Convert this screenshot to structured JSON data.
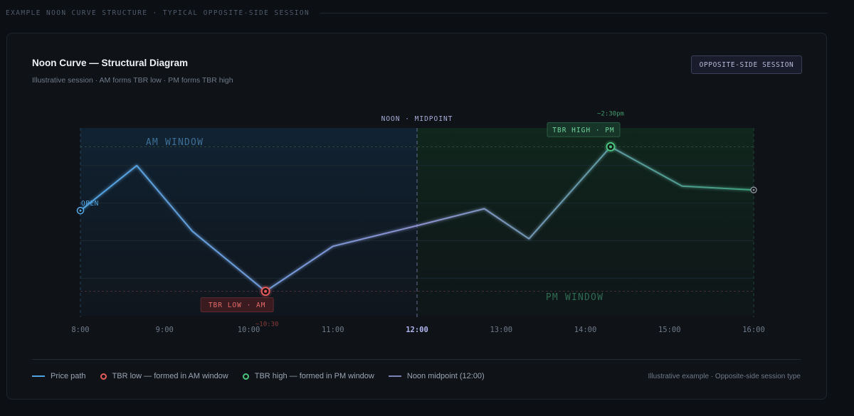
{
  "section_label": "EXAMPLE NOON CURVE STRUCTURE · TYPICAL OPPOSITE-SIDE SESSION",
  "card": {
    "title": "Noon Curve — Structural Diagram",
    "subtitle": "Illustrative session · AM forms TBR low · PM forms TBR high",
    "tag": "OPPOSITE-SIDE SESSION"
  },
  "colors": {
    "am_line": "#4fa3e0",
    "pm_line": "#3fa07e",
    "mid_line": "#8e93d1",
    "low": "#e65b5b",
    "high": "#4cc27f",
    "midpoint": "#7c83b8"
  },
  "chart_data": {
    "type": "line",
    "title": "Noon Curve — Structural Diagram",
    "x_ticks": [
      "8:00",
      "9:00",
      "10:00",
      "11:00",
      "12:00",
      "13:00",
      "14:00",
      "15:00",
      "16:00"
    ],
    "highlight_tick": "12:00",
    "x_range_hours": [
      8,
      16
    ],
    "y_range": [
      0,
      100
    ],
    "series": [
      {
        "name": "Price path",
        "x": [
          8.0,
          8.67,
          9.33,
          10.2,
          11.0,
          12.0,
          12.8,
          13.33,
          14.3,
          15.15,
          16.0
        ],
        "y": [
          56,
          80,
          45,
          13,
          37,
          48,
          57,
          41,
          90,
          69,
          67
        ]
      }
    ],
    "windows": [
      {
        "name": "AM WINDOW",
        "from": 8,
        "to": 12
      },
      {
        "name": "PM WINDOW",
        "from": 12,
        "to": 16
      }
    ],
    "midpoint": {
      "x": 12,
      "label": "NOON · MIDPOINT"
    },
    "annotations": {
      "open_label": "OPEN",
      "low_label": "TBR LOW · AM",
      "low_time": "~10:30",
      "high_label": "TBR HIGH · PM",
      "high_time": "~2:30pm"
    }
  },
  "legend": {
    "price": "Price path",
    "low": "TBR low — formed in AM window",
    "high": "TBR high — formed in PM window",
    "mid": "Noon midpoint (12:00)",
    "note": "Illustrative example · Opposite-side session type"
  }
}
